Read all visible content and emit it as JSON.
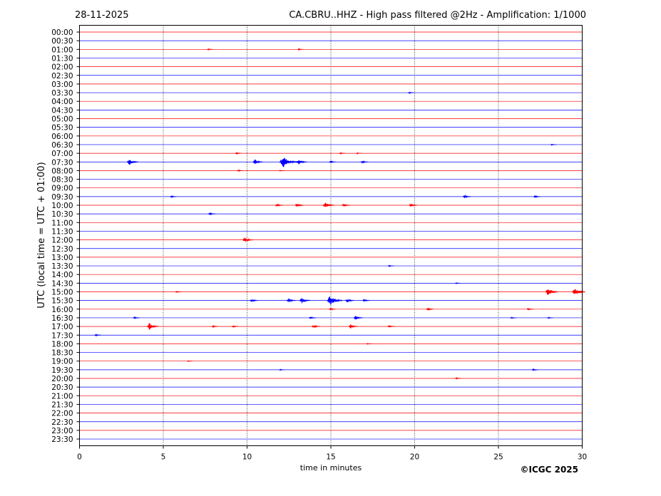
{
  "header": {
    "date": "28-11-2025",
    "title": "CA.CBRU..HHZ - High pass filtered @2Hz - Amplification: 1/1000"
  },
  "footer": {
    "copyright": "©ICGC 2025"
  },
  "chart_data": {
    "type": "line",
    "xlabel": "time in minutes",
    "ylabel": "UTC (local time = UTC + 01:00)",
    "xlim": [
      0,
      30
    ],
    "xticks": [
      0,
      5,
      10,
      15,
      20,
      25,
      30
    ],
    "xtick_labels": [
      "0",
      "5",
      "10",
      "15",
      "20",
      "25",
      "30"
    ],
    "grid_x": true,
    "series_colors": [
      "#ff0000",
      "#0000ff"
    ],
    "rows": [
      "00:00",
      "00:30",
      "01:00",
      "01:30",
      "02:00",
      "02:30",
      "03:00",
      "03:30",
      "04:00",
      "04:30",
      "05:00",
      "05:30",
      "06:00",
      "06:30",
      "07:00",
      "07:30",
      "08:00",
      "08:30",
      "09:00",
      "09:30",
      "10:00",
      "10:30",
      "11:00",
      "11:30",
      "12:00",
      "12:30",
      "13:00",
      "13:30",
      "14:00",
      "14:30",
      "15:00",
      "15:30",
      "16:00",
      "16:30",
      "17:00",
      "17:30",
      "18:00",
      "18:30",
      "19:00",
      "19:30",
      "20:00",
      "20:30",
      "21:00",
      "21:30",
      "22:00",
      "22:30",
      "23:00",
      "23:30"
    ],
    "events": [
      {
        "row": "01:00",
        "minute": 7.7,
        "amp": 0.08
      },
      {
        "row": "01:00",
        "minute": 13.1,
        "amp": 0.08
      },
      {
        "row": "03:30",
        "minute": 19.7,
        "amp": 0.08
      },
      {
        "row": "06:30",
        "minute": 28.2,
        "amp": 0.06
      },
      {
        "row": "07:00",
        "minute": 9.4,
        "amp": 0.1
      },
      {
        "row": "07:00",
        "minute": 15.6,
        "amp": 0.08
      },
      {
        "row": "07:00",
        "minute": 16.6,
        "amp": 0.07
      },
      {
        "row": "07:30",
        "minute": 3.0,
        "amp": 0.32
      },
      {
        "row": "07:30",
        "minute": 10.5,
        "amp": 0.25
      },
      {
        "row": "07:30",
        "minute": 12.2,
        "amp": 0.6
      },
      {
        "row": "07:30",
        "minute": 13.1,
        "amp": 0.28
      },
      {
        "row": "07:30",
        "minute": 15.0,
        "amp": 0.12
      },
      {
        "row": "07:30",
        "minute": 16.9,
        "amp": 0.15
      },
      {
        "row": "08:00",
        "minute": 9.5,
        "amp": 0.08
      },
      {
        "row": "08:00",
        "minute": 12.0,
        "amp": 0.06
      },
      {
        "row": "09:30",
        "minute": 5.5,
        "amp": 0.1
      },
      {
        "row": "09:30",
        "minute": 23.0,
        "amp": 0.18
      },
      {
        "row": "09:30",
        "minute": 27.2,
        "amp": 0.12
      },
      {
        "row": "10:00",
        "minute": 11.8,
        "amp": 0.15
      },
      {
        "row": "10:00",
        "minute": 13.0,
        "amp": 0.2
      },
      {
        "row": "10:00",
        "minute": 14.7,
        "amp": 0.3
      },
      {
        "row": "10:00",
        "minute": 15.8,
        "amp": 0.18
      },
      {
        "row": "10:00",
        "minute": 19.8,
        "amp": 0.18
      },
      {
        "row": "10:30",
        "minute": 7.8,
        "amp": 0.12
      },
      {
        "row": "12:00",
        "minute": 9.9,
        "amp": 0.28
      },
      {
        "row": "13:30",
        "minute": 18.5,
        "amp": 0.08
      },
      {
        "row": "14:30",
        "minute": 22.5,
        "amp": 0.06
      },
      {
        "row": "15:00",
        "minute": 5.8,
        "amp": 0.08
      },
      {
        "row": "15:00",
        "minute": 28.0,
        "amp": 0.38
      },
      {
        "row": "15:00",
        "minute": 29.6,
        "amp": 0.4
      },
      {
        "row": "15:30",
        "minute": 10.3,
        "amp": 0.18
      },
      {
        "row": "15:30",
        "minute": 12.5,
        "amp": 0.22
      },
      {
        "row": "15:30",
        "minute": 13.3,
        "amp": 0.3
      },
      {
        "row": "15:30",
        "minute": 15.0,
        "amp": 0.5
      },
      {
        "row": "15:30",
        "minute": 16.0,
        "amp": 0.2
      },
      {
        "row": "15:30",
        "minute": 17.0,
        "amp": 0.15
      },
      {
        "row": "16:00",
        "minute": 15.0,
        "amp": 0.12
      },
      {
        "row": "16:00",
        "minute": 20.8,
        "amp": 0.15
      },
      {
        "row": "16:00",
        "minute": 26.8,
        "amp": 0.12
      },
      {
        "row": "16:30",
        "minute": 3.3,
        "amp": 0.1
      },
      {
        "row": "16:30",
        "minute": 13.8,
        "amp": 0.12
      },
      {
        "row": "16:30",
        "minute": 16.5,
        "amp": 0.22
      },
      {
        "row": "16:30",
        "minute": 25.8,
        "amp": 0.08
      },
      {
        "row": "16:30",
        "minute": 28.0,
        "amp": 0.08
      },
      {
        "row": "17:00",
        "minute": 4.2,
        "amp": 0.35
      },
      {
        "row": "17:00",
        "minute": 8.0,
        "amp": 0.1
      },
      {
        "row": "17:00",
        "minute": 9.2,
        "amp": 0.1
      },
      {
        "row": "17:00",
        "minute": 14.0,
        "amp": 0.18
      },
      {
        "row": "17:00",
        "minute": 16.2,
        "amp": 0.22
      },
      {
        "row": "17:00",
        "minute": 18.5,
        "amp": 0.12
      },
      {
        "row": "17:30",
        "minute": 1.0,
        "amp": 0.1
      },
      {
        "row": "18:00",
        "minute": 17.2,
        "amp": 0.06
      },
      {
        "row": "19:00",
        "minute": 6.5,
        "amp": 0.06
      },
      {
        "row": "19:30",
        "minute": 12.0,
        "amp": 0.06
      },
      {
        "row": "19:30",
        "minute": 27.1,
        "amp": 0.1
      },
      {
        "row": "20:00",
        "minute": 22.5,
        "amp": 0.08
      }
    ]
  }
}
